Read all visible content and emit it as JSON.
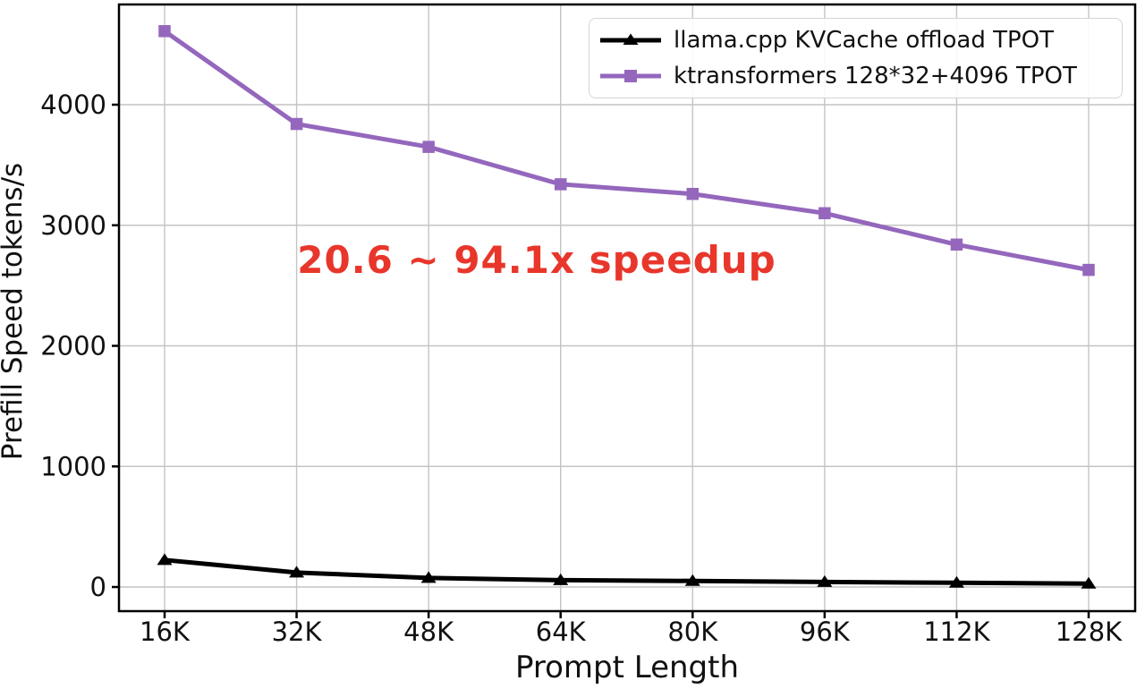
{
  "chart_data": {
    "type": "line",
    "categories": [
      "16K",
      "32K",
      "48K",
      "64K",
      "80K",
      "96K",
      "112K",
      "128K"
    ],
    "series": [
      {
        "name": "llama.cpp KVCache offload TPOT",
        "color": "#000000",
        "marker": "triangle",
        "values": [
          224,
          120,
          75,
          57,
          50,
          42,
          35,
          28
        ]
      },
      {
        "name": "ktransformers 128*32+4096 TPOT",
        "color": "#9467bd",
        "marker": "square",
        "values": [
          4610,
          3840,
          3650,
          3340,
          3260,
          3100,
          2840,
          2630
        ]
      }
    ],
    "title": "",
    "xlabel": "Prompt Length",
    "ylabel": "Prefill Speed tokens/s",
    "yticks": [
      0,
      1000,
      2000,
      3000,
      4000
    ],
    "ylim": [
      -200,
      4840
    ],
    "grid": true,
    "legend_position": "upper right",
    "annotation": {
      "text": "20.6 ~ 94.1x speedup",
      "color": "#e8362b"
    },
    "colors": {
      "grid": "#c4c4c4",
      "spine": "#000000",
      "tick_label": "#111111"
    }
  }
}
